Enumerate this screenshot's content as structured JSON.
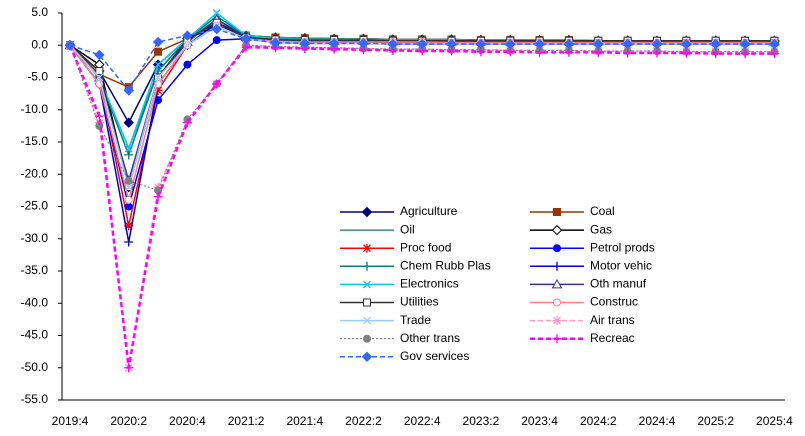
{
  "chart_data": {
    "type": "line",
    "categories": [
      "2019:4",
      null,
      "2020:2",
      null,
      "2020:4",
      null,
      "2021:2",
      null,
      "2021:4",
      null,
      "2022:2",
      null,
      "2022:4",
      null,
      "2023:2",
      null,
      "2023:4",
      null,
      "2024:2",
      null,
      "2024:4",
      null,
      "2025:2",
      null,
      "2025:4"
    ],
    "ylim": [
      -55,
      5
    ],
    "yticks": [
      {
        "value": 5,
        "label": "5.0"
      },
      {
        "value": 0,
        "label": "0.0"
      },
      {
        "value": -5,
        "label": "-5.0"
      },
      {
        "value": -10,
        "label": "-10.0"
      },
      {
        "value": -15,
        "label": "-15.0"
      },
      {
        "value": -20,
        "label": "-20.0"
      },
      {
        "value": -25,
        "label": "-25.0"
      },
      {
        "value": -30,
        "label": "-30.0"
      },
      {
        "value": -35,
        "label": "-35.0"
      },
      {
        "value": -40,
        "label": "-40.0"
      },
      {
        "value": -45,
        "label": "-45.0"
      },
      {
        "value": -50,
        "label": "-50.0"
      },
      {
        "value": -55,
        "label": "-55.0"
      }
    ],
    "grid": false,
    "series": [
      {
        "name": "Agriculture",
        "color": "#000080",
        "marker": "diamond",
        "dash": "solid",
        "values": [
          0,
          -4,
          -12,
          -3,
          1,
          3.5,
          1.5,
          1.2,
          1.1,
          1.0,
          1.0,
          0.9,
          0.9,
          0.9,
          0.8,
          0.8,
          0.8,
          0.8,
          0.7,
          0.7,
          0.7,
          0.7,
          0.7,
          0.7,
          0.7
        ]
      },
      {
        "name": "Coal",
        "color": "#993300",
        "marker": "square",
        "dash": "solid",
        "values": [
          0,
          -4.5,
          -6.5,
          -1,
          1,
          3,
          1.5,
          1.2,
          1.1,
          1.0,
          1.0,
          0.9,
          0.9,
          0.9,
          0.8,
          0.8,
          0.8,
          0.8,
          0.7,
          0.7,
          0.7,
          0.7,
          0.7,
          0.7,
          0.7
        ]
      },
      {
        "name": "Oil",
        "color": "#339966",
        "marker": "none",
        "dash": "solid",
        "values": [
          0,
          -5,
          -16,
          -4,
          1,
          4,
          1.5,
          1.2,
          1.1,
          1.0,
          1.0,
          0.9,
          0.9,
          0.9,
          0.8,
          0.8,
          0.8,
          0.8,
          0.7,
          0.7,
          0.7,
          0.7,
          0.7,
          0.7,
          0.7
        ]
      },
      {
        "name": "Gas",
        "color": "#000000",
        "marker": "diamond-open",
        "dash": "solid",
        "values": [
          0,
          -3,
          -22,
          -5,
          1,
          3,
          1.3,
          1.0,
          0.9,
          0.9,
          0.8,
          0.8,
          0.8,
          0.8,
          0.7,
          0.7,
          0.7,
          0.7,
          0.7,
          0.7,
          0.6,
          0.6,
          0.6,
          0.6,
          0.6
        ]
      },
      {
        "name": "Proc food",
        "color": "#ff0000",
        "marker": "asterisk",
        "dash": "solid",
        "values": [
          0,
          -5,
          -28,
          -7,
          0,
          3,
          1,
          0.6,
          0.5,
          0.5,
          0.5,
          0.5,
          0.5,
          0.4,
          0.4,
          0.4,
          0.4,
          0.4,
          0.4,
          0.4,
          0.4,
          0.4,
          0.4,
          0.4,
          0.4
        ]
      },
      {
        "name": "Petrol prods",
        "color": "#0000ff",
        "marker": "circle",
        "dash": "solid",
        "values": [
          0,
          -6,
          -25,
          -8.5,
          -3,
          0.8,
          1,
          0.4,
          0.3,
          0.3,
          0.3,
          0.2,
          0.2,
          0.2,
          0.2,
          0.2,
          0.2,
          0.2,
          0.2,
          0.2,
          0.2,
          0.2,
          0.2,
          0.2,
          0.2
        ]
      },
      {
        "name": "Chem Rubb Plas",
        "color": "#008080",
        "marker": "plus",
        "dash": "solid",
        "values": [
          0,
          -5,
          -17,
          -4,
          1,
          4.5,
          1.5,
          1.0,
          0.9,
          0.9,
          0.8,
          0.8,
          0.8,
          0.8,
          0.7,
          0.7,
          0.7,
          0.7,
          0.7,
          0.7,
          0.6,
          0.6,
          0.6,
          0.6,
          0.6
        ]
      },
      {
        "name": "Motor vehic",
        "color": "#0000cc",
        "marker": "plus",
        "dash": "solid",
        "values": [
          0,
          -6,
          -30.5,
          -6,
          0,
          3.5,
          1,
          0.6,
          0.5,
          0.5,
          0.5,
          0.5,
          0.5,
          0.4,
          0.4,
          0.4,
          0.4,
          0.4,
          0.4,
          0.4,
          0.4,
          0.4,
          0.4,
          0.4,
          0.4
        ]
      },
      {
        "name": "Electronics",
        "color": "#00ccff",
        "marker": "x",
        "dash": "solid",
        "values": [
          0,
          -5,
          -16,
          -3,
          1,
          5,
          1.5,
          1.0,
          0.9,
          0.9,
          0.8,
          0.8,
          0.8,
          0.8,
          0.7,
          0.7,
          0.7,
          0.7,
          0.7,
          0.7,
          0.6,
          0.6,
          0.6,
          0.6,
          0.6
        ]
      },
      {
        "name": "Oth manuf",
        "color": "#333399",
        "marker": "triangle-open",
        "dash": "solid",
        "values": [
          0,
          -5,
          -21,
          -5,
          0.5,
          4,
          1.3,
          0.8,
          0.7,
          0.7,
          0.7,
          0.6,
          0.6,
          0.6,
          0.6,
          0.6,
          0.6,
          0.6,
          0.6,
          0.6,
          0.6,
          0.6,
          0.6,
          0.6,
          0.6
        ]
      },
      {
        "name": "Utilities",
        "color": "#333333",
        "marker": "square-open",
        "dash": "solid",
        "values": [
          0,
          -4,
          -22,
          -5,
          1,
          3.5,
          1.2,
          0.9,
          0.8,
          0.8,
          0.8,
          0.7,
          0.7,
          0.7,
          0.7,
          0.7,
          0.7,
          0.7,
          0.7,
          0.7,
          0.7,
          0.7,
          0.7,
          0.7,
          0.7
        ]
      },
      {
        "name": "Construc",
        "color": "#ff8080",
        "marker": "circle-open",
        "dash": "solid",
        "values": [
          0,
          -6,
          -24,
          -6,
          0,
          3,
          1,
          0.6,
          0.5,
          0.5,
          0.5,
          0.5,
          0.5,
          0.4,
          0.4,
          0.4,
          0.4,
          0.4,
          0.4,
          0.4,
          0.4,
          0.4,
          0.4,
          0.4,
          0.4
        ]
      },
      {
        "name": "Trade",
        "color": "#99ccff",
        "marker": "x",
        "dash": "solid",
        "values": [
          0,
          -5,
          -22,
          -5,
          0,
          3,
          1,
          0.4,
          0.3,
          0.3,
          0.3,
          0.2,
          0.2,
          0.2,
          0.2,
          0.2,
          0.2,
          0.2,
          0.2,
          0.2,
          0.2,
          0.2,
          0.2,
          0.2,
          0.2
        ]
      },
      {
        "name": "Air trans",
        "color": "#ff99cc",
        "marker": "asterisk",
        "dash": "dashed",
        "values": [
          0,
          -12,
          -50,
          -22,
          -12,
          -6,
          0,
          -0.2,
          -0.3,
          -0.4,
          -0.5,
          -0.6,
          -0.6,
          -0.7,
          -0.7,
          -0.8,
          -0.8,
          -0.8,
          -0.9,
          -0.9,
          -0.9,
          -1.0,
          -1.0,
          -1.0,
          -1.0
        ]
      },
      {
        "name": "Other trans",
        "color": "#808080",
        "marker": "circle",
        "dash": "dotted",
        "values": [
          0,
          -12.5,
          -21,
          -22.5,
          -11.5,
          -6,
          0,
          -0.2,
          -0.3,
          -0.4,
          -0.5,
          -0.6,
          -0.6,
          -0.7,
          -0.7,
          -0.8,
          -0.8,
          -0.8,
          -0.9,
          -0.9,
          -0.9,
          -1.0,
          -1.0,
          -1.0,
          -1.0
        ]
      },
      {
        "name": "Recreac",
        "color": "#ff00ff",
        "marker": "plus",
        "dash": "dashed-thick",
        "values": [
          0,
          -11,
          -50,
          -23.5,
          -12,
          -6,
          -0.3,
          -0.4,
          -0.5,
          -0.6,
          -0.7,
          -0.8,
          -0.9,
          -0.9,
          -1.0,
          -1.0,
          -1.1,
          -1.1,
          -1.1,
          -1.2,
          -1.2,
          -1.2,
          -1.3,
          -1.3,
          -1.3
        ]
      },
      {
        "name": "Gov services",
        "color": "#3366ff",
        "marker": "diamond",
        "dash": "dashed",
        "values": [
          0,
          -1.5,
          -7,
          0.5,
          1.5,
          2.5,
          1,
          0.4,
          0.3,
          0.3,
          0.3,
          0.2,
          0.2,
          0.2,
          0.2,
          0.2,
          0.2,
          0.2,
          0.2,
          0.2,
          0.2,
          0.2,
          0.2,
          0.2,
          0.2
        ]
      }
    ]
  }
}
